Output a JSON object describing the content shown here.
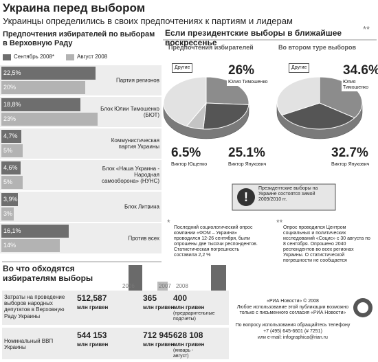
{
  "header": {
    "title": "Украина перед выбором",
    "subtitle": "Украинцы определились в своих предпочтениях к партиям и лидерам"
  },
  "president_section": {
    "title": "Если президентские выборы в ближайшее воскресенье",
    "mark": "**"
  },
  "chart_data": [
    {
      "type": "hbar",
      "title": "Предпочтения избирателей по выборам в Верховную Раду",
      "categories": [
        "Партия регионов",
        "Блок Юлии Тимошенко (БЮТ)",
        "Коммунистическая партия Украины",
        "Блок «Наша Украина - Народная самооборона» (НУНС)",
        "Блок Литвина",
        "Против всех"
      ],
      "series": [
        {
          "name": "Сентябрь 2008*",
          "color": "#6e6e6e",
          "values": [
            22.5,
            18.8,
            4.7,
            4.6,
            3.9,
            16.1
          ],
          "value_labels": [
            "22,5%",
            "18,8%",
            "4,7%",
            "4,6%",
            "3,9%",
            "16,1%"
          ]
        },
        {
          "name": "Август 2008",
          "color": "#b3b3b3",
          "values": [
            20,
            23,
            5,
            5,
            3,
            14
          ],
          "value_labels": [
            "20%",
            "23%",
            "5%",
            "5%",
            "3%",
            "14%"
          ]
        }
      ]
    },
    {
      "type": "pie",
      "title": "Предпочтения избирателей",
      "categories": [
        "Юлия Тимошенко",
        "Виктор Янукович",
        "Виктор Ющенко",
        "Другие"
      ],
      "values": [
        26,
        25.1,
        6.5,
        42.4
      ],
      "value_labels": [
        "26%",
        "25.1%",
        "6.5%",
        null
      ],
      "colors": [
        "#8c8c8c",
        "#555555",
        "#c4c4c4",
        "#e2e2e2"
      ]
    },
    {
      "type": "pie",
      "title": "Во втором туре выборов",
      "categories": [
        "Юлия Тимошенко",
        "Виктор Янукович",
        "Другие"
      ],
      "values": [
        34.6,
        32.7,
        32.7
      ],
      "value_labels": [
        "34.6%",
        "32.7%",
        null
      ],
      "colors": [
        "#8c8c8c",
        "#555555",
        "#e2e2e2"
      ]
    }
  ],
  "note": "Президентские выборы на Украине состоятся зимой 2009/2010 гг.",
  "footnotes": [
    {
      "mark": "*",
      "text": "Последний социологический опрос компании «ФОМ – Украина» проводился 12-26 сентября, были опрошены две тысячи респондентов. Статистическая погрешность составила 2,2 %"
    },
    {
      "mark": "**",
      "text": "Опрос проводился Центром социальных и политических исследований «Социс» с 30 августа по 8 сентября. Опрошено 2040 респондентов во всех регионах Украины. О статистической погрешности не сообщается"
    }
  ],
  "table": {
    "title": "Во что обходятся избирателям выборы",
    "columns": [
      "2006",
      "2007",
      "2008"
    ],
    "rows": [
      {
        "label": "Затраты на проведение выборов народных депутатов в Верховную Раду Украины",
        "cells": [
          {
            "value": "512,587",
            "unit": "млн гривен"
          },
          {
            "value": "365",
            "unit": "млн гривен"
          },
          {
            "value": "400",
            "unit": "млн гривен",
            "note": "(предварительные подсчеты)"
          }
        ]
      },
      {
        "label": "Номинальный ВВП Украины",
        "cells": [
          {
            "value": "544 153",
            "unit": "млн гривен"
          },
          {
            "value": "712 945",
            "unit": "млн гривен"
          },
          {
            "value": "628 108",
            "unit": "млн гривен",
            "note": "(январь - август)"
          }
        ]
      }
    ]
  },
  "credits": [
    "«РИА Новости» © 2008",
    "Любое использование этой публикации возможно только с письменного согласия «РИА Новости»",
    "По вопросу использования обращайтесь телефону",
    "+7 (495) 645-6601 (# 7251)",
    "или e-mail: infographica@rian.ru"
  ]
}
